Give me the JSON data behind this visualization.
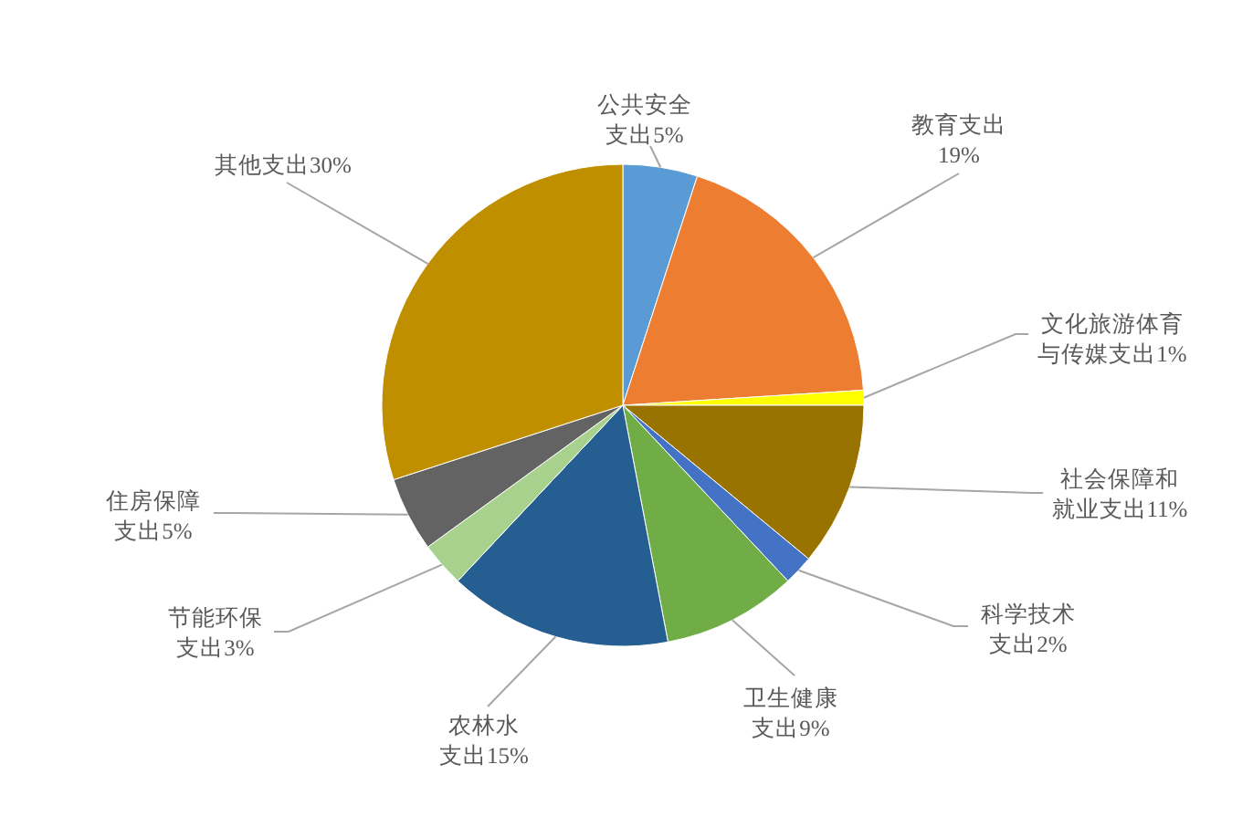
{
  "chart_data": {
    "type": "pie",
    "categories": [
      "公共安全支出",
      "教育支出",
      "文化旅游体育与传媒支出",
      "社会保障和就业支出",
      "科学技术支出",
      "卫生健康支出",
      "农林水支出",
      "节能环保支出",
      "住房保障支出",
      "其他支出"
    ],
    "values": [
      5,
      19,
      1,
      11,
      2,
      9,
      15,
      3,
      5,
      30
    ],
    "value_labels": [
      "5%",
      "19%",
      "1%",
      "11%",
      "2%",
      "9%",
      "15%",
      "3%",
      "5%",
      "30%"
    ],
    "colors": [
      "#5b9bd5",
      "#ed7d31",
      "#ffff00",
      "#997300",
      "#4472c4",
      "#70ad47",
      "#255e91",
      "#a9d18e",
      "#636363",
      "#bf8f00"
    ]
  }
}
